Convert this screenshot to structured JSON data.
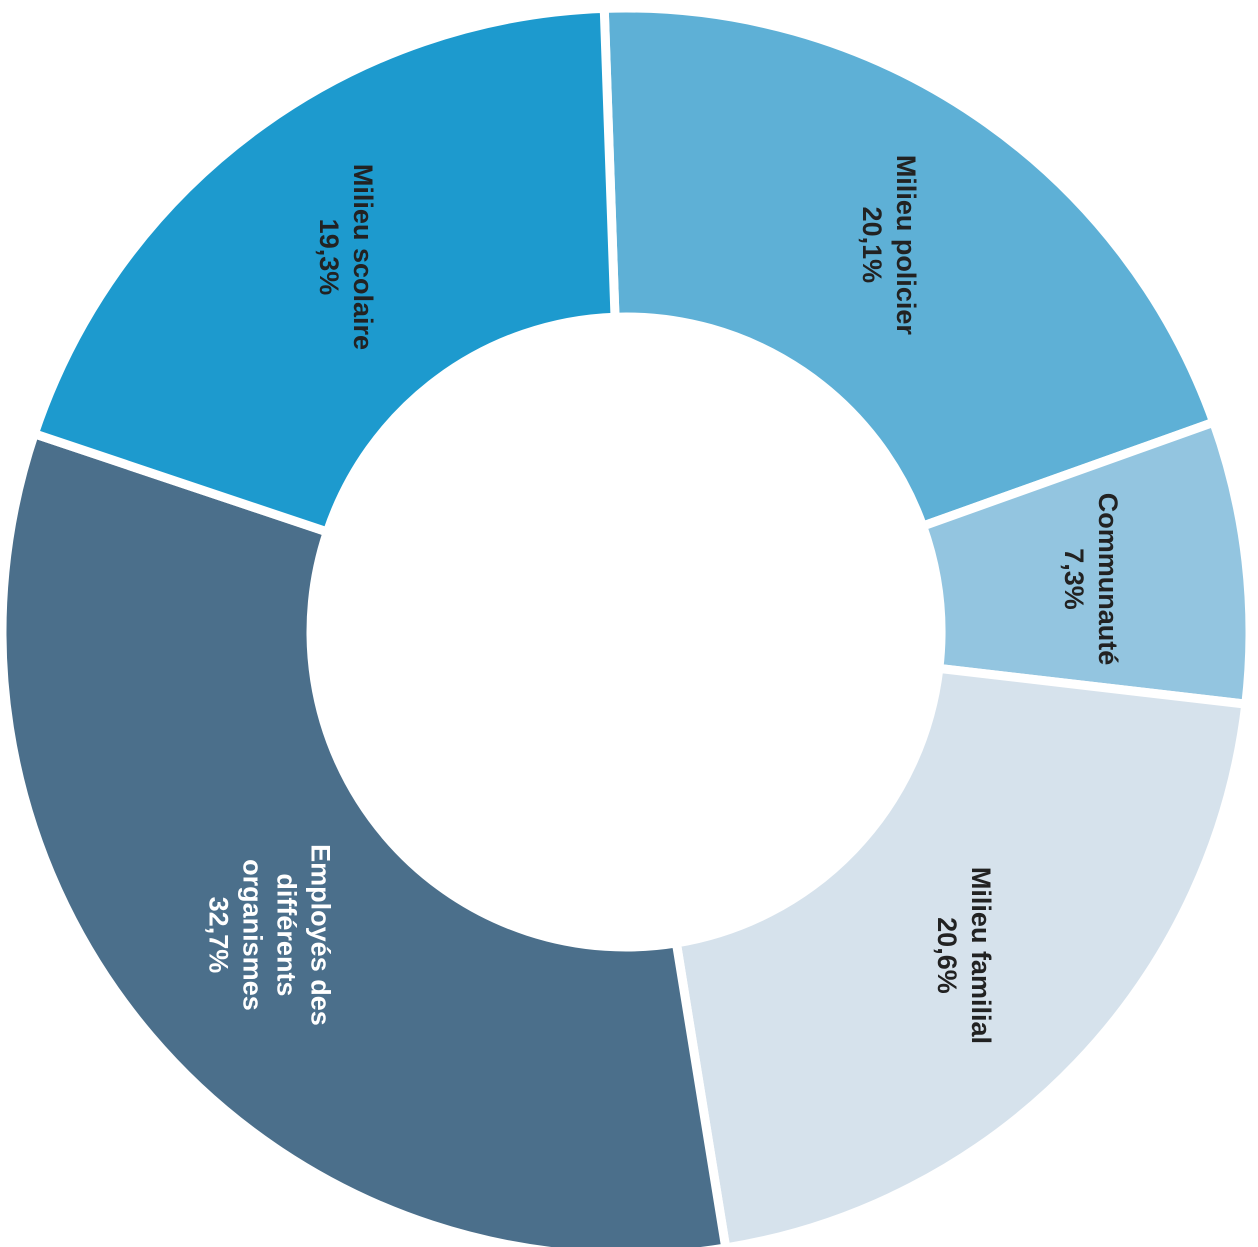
{
  "chart_data": {
    "type": "pie",
    "variant": "donut",
    "orientation": "rotated 90 degrees clockwise",
    "title": "",
    "slices": [
      {
        "label_lines": [
          "Milieu policier",
          "20,1%"
        ],
        "value": 20.1,
        "color": "#5eb0d6",
        "text_color": "#222222"
      },
      {
        "label_lines": [
          "Communauté",
          "7,3%"
        ],
        "value": 7.3,
        "color": "#93c5e0",
        "text_color": "#222222"
      },
      {
        "label_lines": [
          "Milieu familial",
          "20,6%"
        ],
        "value": 20.6,
        "color": "#d6e2ec",
        "text_color": "#222222"
      },
      {
        "label_lines": [
          "Employés des",
          "différents",
          "organismes",
          "32,7%"
        ],
        "value": 32.7,
        "color": "#4b6f8b",
        "text_color": "#ffffff"
      },
      {
        "label_lines": [
          "Milieu scolaire",
          "19,3%"
        ],
        "value": 19.3,
        "color": "#1d9ace",
        "text_color": "#222222"
      }
    ]
  }
}
